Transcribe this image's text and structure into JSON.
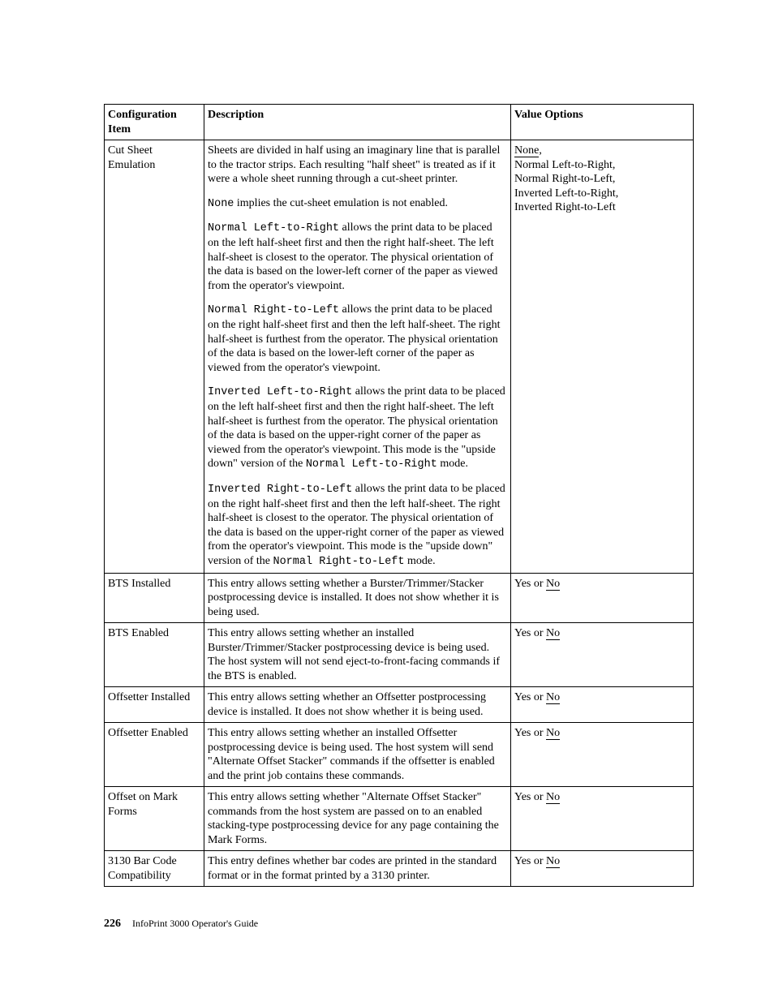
{
  "table": {
    "headers": {
      "c1": "Configuration Item",
      "c2": "Description",
      "c3": "Value Options"
    },
    "rows": [
      {
        "item": "Cut Sheet Emulation",
        "desc": {
          "p1_a": "Sheets are divided in half using an imaginary line that is parallel to the tractor strips. Each resulting \"half sheet\" is treated as if it were a whole sheet running through a cut-sheet printer.",
          "p2_mono": "None",
          "p2_rest": " implies the cut-sheet emulation is not enabled.",
          "p3_mono": "Normal Left-to-Right",
          "p3_rest": " allows the print data to be placed on the left half-sheet first and then the right half-sheet. The left half-sheet is closest to the operator. The physical orientation of the data is based on the lower-left corner of the paper as viewed from the operator's viewpoint.",
          "p4_mono": "Normal Right-to-Left",
          "p4_rest": " allows the print data to be placed on the right half-sheet first and then the left half-sheet. The right half-sheet is furthest from the operator. The physical orientation of the data is based on the lower-left corner of the paper as viewed from the operator's viewpoint.",
          "p5_mono": "Inverted Left-to-Right",
          "p5_rest_a": " allows the print data to be placed on the left half-sheet first and then the right half-sheet. The left half-sheet is furthest from the operator. The physical orientation of the data is based on the upper-right corner of the paper as viewed from the operator's viewpoint. This mode is the \"upside down\" version of the ",
          "p5_mono2": "Normal Left-to-Right",
          "p5_rest_b": " mode.",
          "p6_mono": "Inverted Right-to-Left",
          "p6_rest_a": " allows the print data to be placed on the right half-sheet first and then the left half-sheet. The right half-sheet is closest to the operator. The physical orientation of the data is based on the upper-right corner of the paper as viewed from the operator's viewpoint. This mode is the \"upside down\" version of the ",
          "p6_mono2": "Normal Right-to-Left",
          "p6_rest_b": " mode."
        },
        "val": {
          "l1_ul": "None",
          "l1_rest": ",",
          "l2": "Normal Left-to-Right,",
          "l3": "Normal Right-to-Left,",
          "l4": "Inverted Left-to-Right,",
          "l5": "Inverted Right-to-Left"
        }
      },
      {
        "item": "BTS Installed",
        "desc_text": "This entry allows setting whether a Burster/Trimmer/Stacker postprocessing device is installed. It does not show whether it is being used.",
        "val_pre": "Yes or ",
        "val_ul": "No"
      },
      {
        "item": "BTS Enabled",
        "desc_text": "This entry allows setting whether an installed Burster/Trimmer/Stacker postprocessing device is being used. The host system will not send eject-to-front-facing commands if the BTS is enabled.",
        "val_pre": "Yes or ",
        "val_ul": "No"
      },
      {
        "item": "Offsetter Installed",
        "desc_text": "This entry allows setting whether an Offsetter postprocessing device is installed. It does not show whether it is being used.",
        "val_pre": "Yes or ",
        "val_ul": "No"
      },
      {
        "item": "Offsetter Enabled",
        "desc_text": "This entry allows setting whether an installed Offsetter postprocessing device is being used. The host system will send \"Alternate Offset Stacker\" commands if the offsetter is enabled and the print job contains these commands.",
        "val_pre": "Yes or ",
        "val_ul": "No"
      },
      {
        "item": "Offset on Mark Forms",
        "desc_text": "This entry allows setting whether \"Alternate Offset Stacker\" commands from the host system are passed on to an enabled stacking-type postprocessing device for any page containing the Mark Forms.",
        "val_pre": "Yes or ",
        "val_ul": "No"
      },
      {
        "item": "3130 Bar Code Compatibility",
        "desc_text": "This entry defines whether bar codes are printed in the standard format or in the format printed by a 3130 printer.",
        "val_pre": "Yes or ",
        "val_ul": "No"
      }
    ]
  },
  "footer": {
    "page": "226",
    "booktitle": "InfoPrint 3000 Operator's Guide"
  }
}
